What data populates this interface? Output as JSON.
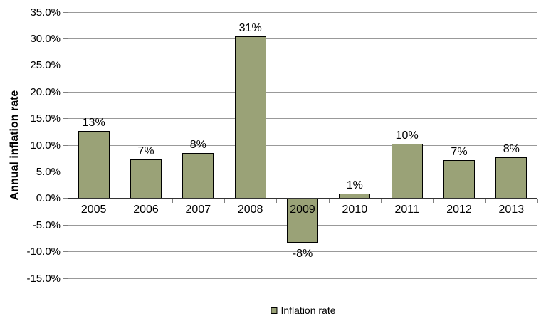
{
  "chart_data": {
    "type": "bar",
    "title": "",
    "xlabel": "",
    "ylabel": "Annual inflation rate",
    "categories": [
      "2005",
      "2006",
      "2007",
      "2008",
      "2009",
      "2010",
      "2011",
      "2012",
      "2013"
    ],
    "values": [
      12.7,
      7.3,
      8.5,
      30.5,
      -8.3,
      0.9,
      10.3,
      7.2,
      7.7
    ],
    "bar_labels": [
      "13%",
      "7%",
      "8%",
      "31%",
      "-8%",
      "1%",
      "10%",
      "7%",
      "8%"
    ],
    "ylim": [
      -15,
      35
    ],
    "ytick_values": [
      35,
      30,
      25,
      20,
      15,
      10,
      5,
      0,
      -5,
      -10,
      -15
    ],
    "ytick_labels": [
      "35.0%",
      "30.0%",
      "25.0%",
      "20.0%",
      "15.0%",
      "10.0%",
      "5.0%",
      "0.0%",
      "-5.0%",
      "-10.0%",
      "-15.0%"
    ],
    "grid": true,
    "legend": {
      "position": "bottom",
      "label": "Inflation rate"
    },
    "colors": {
      "bar_fill": "#9AA277",
      "bar_border": "#000000",
      "gridline": "#999999",
      "axis": "#808080",
      "zero_line": "#333333",
      "text": "#000000",
      "background": "#FFFFFF"
    }
  }
}
